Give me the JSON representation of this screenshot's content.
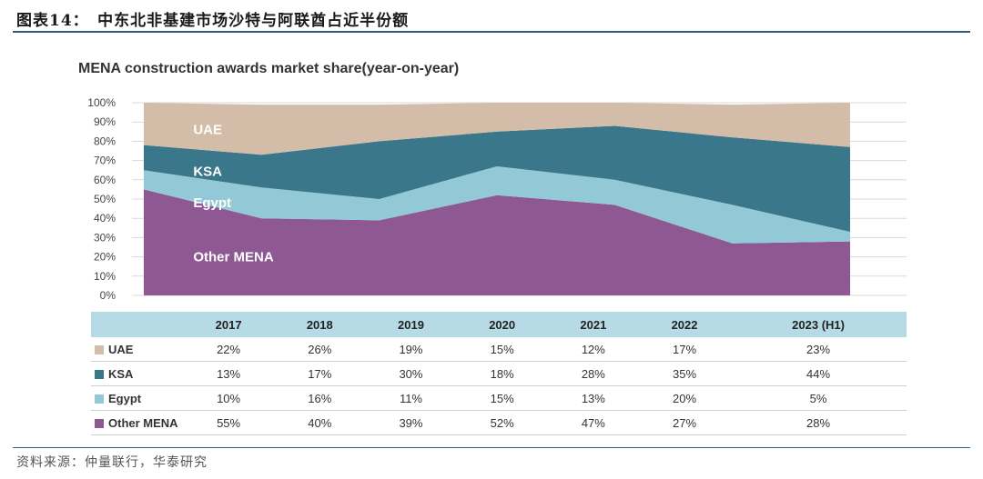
{
  "figure_title": "图表14：　中东北非基建市场沙特与阿联酋占近半份额",
  "source": "资料来源：仲量联行，华泰研究",
  "colors": {
    "UAE": "#d3bda8",
    "KSA": "#3b778a",
    "Egypt": "#93c9d6",
    "Other MENA": "#8e5893"
  },
  "chart_data": {
    "type": "area",
    "stacked": true,
    "title": "MENA construction awards market share(year-on-year)",
    "categories": [
      "2017",
      "2018",
      "2019",
      "2020",
      "2021",
      "2022",
      "2023 (H1)"
    ],
    "ylim": [
      0,
      100
    ],
    "yticks": [
      "0%",
      "10%",
      "20%",
      "30%",
      "40%",
      "50%",
      "60%",
      "70%",
      "80%",
      "90%",
      "100%"
    ],
    "grid": true,
    "series": [
      {
        "name": "Other MENA",
        "values": [
          55,
          40,
          39,
          52,
          47,
          27,
          28
        ],
        "labels": [
          "55%",
          "40%",
          "39%",
          "52%",
          "47%",
          "27%",
          "28%"
        ]
      },
      {
        "name": "Egypt",
        "values": [
          10,
          16,
          11,
          15,
          13,
          20,
          5
        ],
        "labels": [
          "10%",
          "16%",
          "11%",
          "15%",
          "13%",
          "20%",
          "5%"
        ]
      },
      {
        "name": "KSA",
        "values": [
          13,
          17,
          30,
          18,
          28,
          35,
          44
        ],
        "labels": [
          "13%",
          "17%",
          "30%",
          "18%",
          "28%",
          "35%",
          "44%"
        ]
      },
      {
        "name": "UAE",
        "values": [
          22,
          26,
          19,
          15,
          12,
          17,
          23
        ],
        "labels": [
          "22%",
          "26%",
          "19%",
          "15%",
          "12%",
          "17%",
          "23%"
        ]
      }
    ],
    "table_row_order": [
      "UAE",
      "KSA",
      "Egypt",
      "Other MENA"
    ]
  }
}
